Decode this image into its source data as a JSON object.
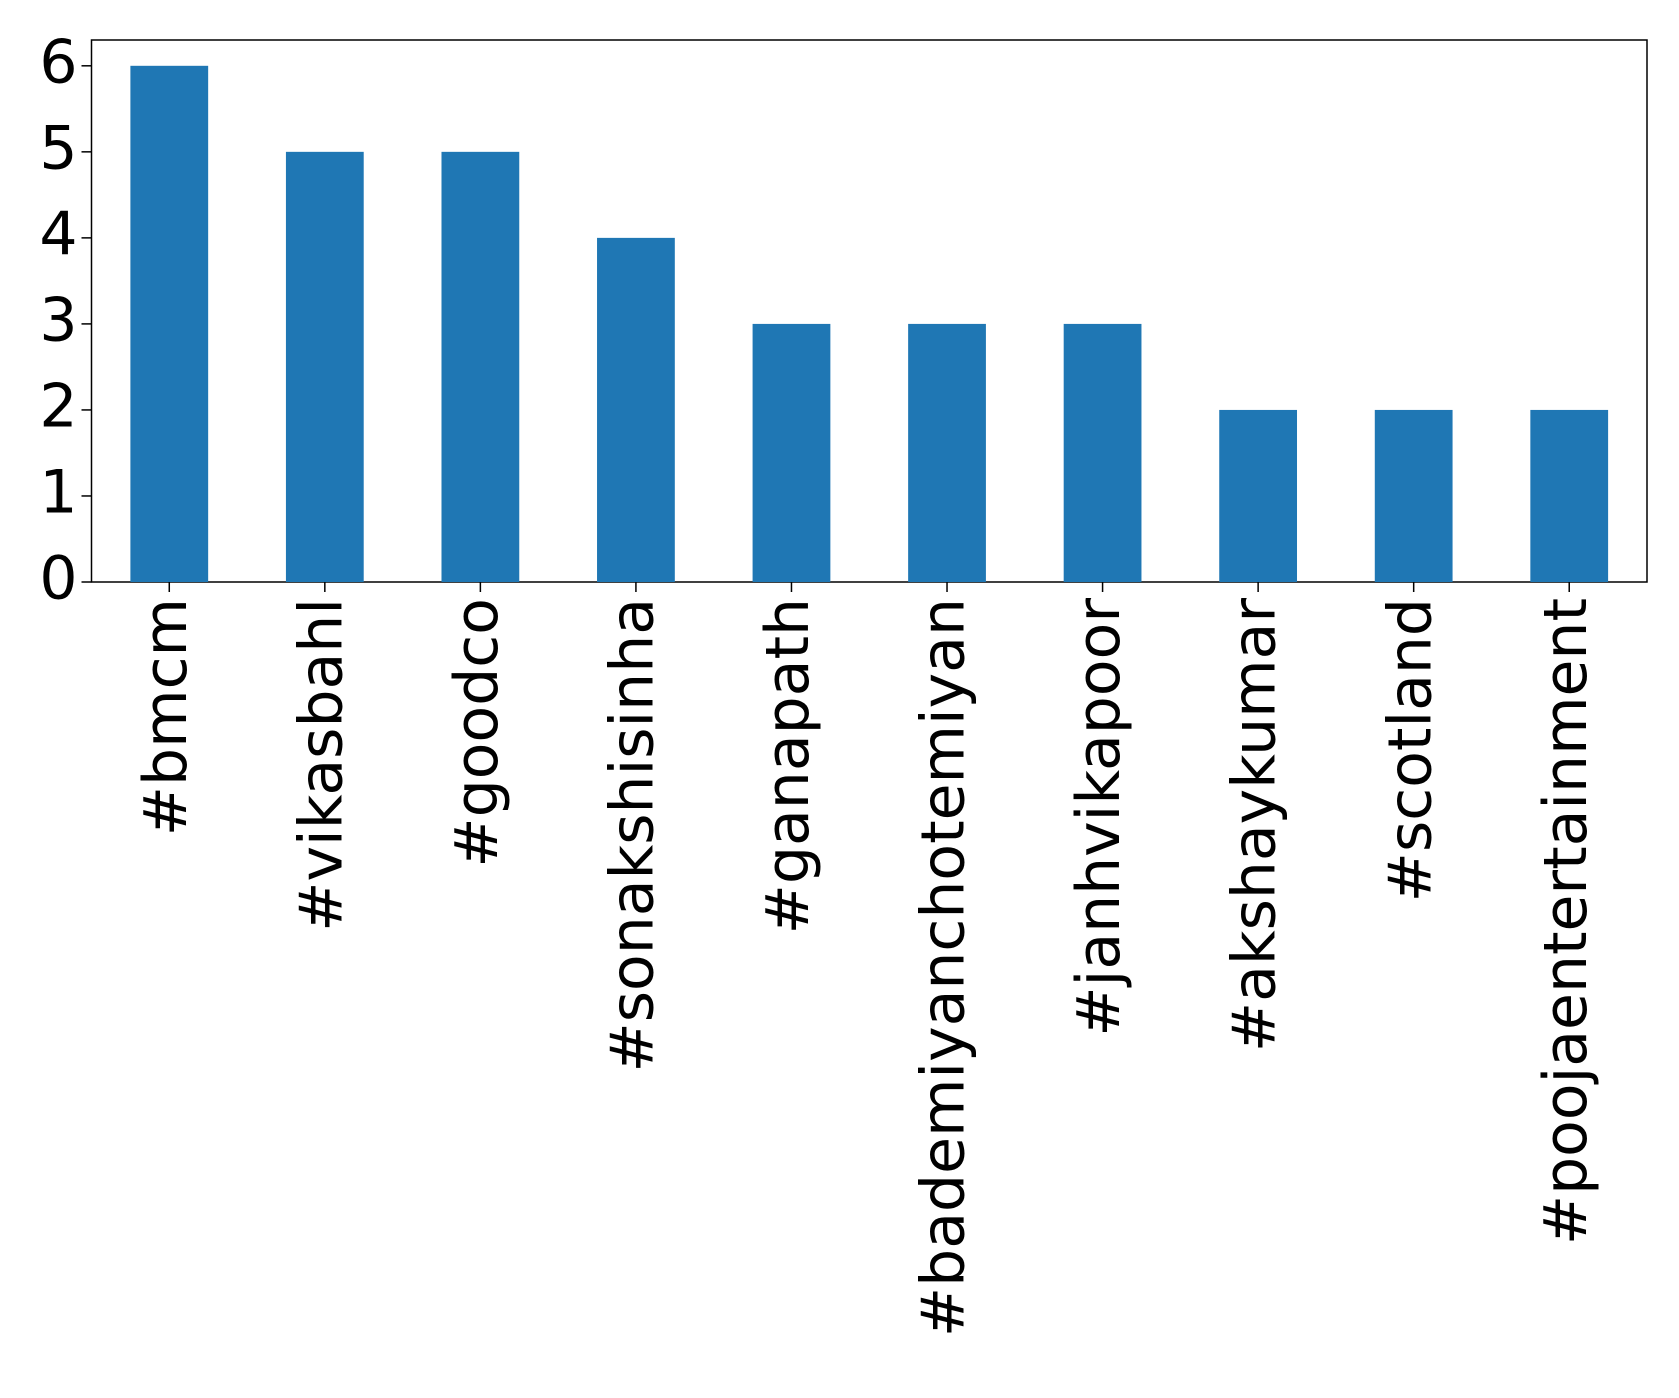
{
  "chart_data": {
    "type": "bar",
    "categories": [
      "#bmcm",
      "#vikasbahl",
      "#goodco",
      "#sonakshisinha",
      "#ganapath",
      "#bademiyanchotemiyan",
      "#janhvikapoor",
      "#akshaykumar",
      "#scotland",
      "#poojaentertainment"
    ],
    "values": [
      6,
      5,
      5,
      4,
      3,
      3,
      3,
      2,
      2,
      2
    ],
    "color": "#1f77b4",
    "ylim": [
      0,
      6.3
    ],
    "yticks": [
      0,
      1,
      2,
      3,
      4,
      5,
      6
    ],
    "grid": false
  }
}
